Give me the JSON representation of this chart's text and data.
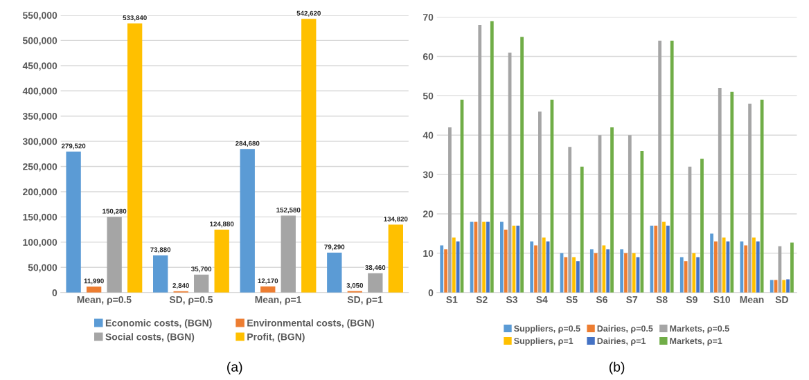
{
  "chart_data": [
    {
      "type": "bar",
      "categories": [
        "Mean, ρ=0.5",
        "SD, ρ=0.5",
        "Mean, ρ=1",
        "SD, ρ=1"
      ],
      "series": [
        {
          "name": "Economic costs, (BGN)",
          "color": "#5b9bd5",
          "values": [
            279520,
            73880,
            284680,
            79290
          ],
          "value_labels": [
            "279,520",
            "73,880",
            "284,680",
            "79,290"
          ]
        },
        {
          "name": "Environmental costs, (BGN)",
          "color": "#ed7d31",
          "values": [
            11990,
            2840,
            12170,
            3050
          ],
          "value_labels": [
            "11,990",
            "2,840",
            "12,170",
            "3,050"
          ]
        },
        {
          "name": "Social costs, (BGN)",
          "color": "#a5a5a5",
          "values": [
            150280,
            35700,
            152580,
            38460
          ],
          "value_labels": [
            "150,280",
            "35,700",
            "152,580",
            "38,460"
          ]
        },
        {
          "name": "Profit, (BGN)",
          "color": "#ffc000",
          "values": [
            533840,
            124880,
            542620,
            134820
          ],
          "value_labels": [
            "533,840",
            "124,880",
            "542,620",
            "134,820"
          ]
        }
      ],
      "ylim": [
        0,
        550000
      ],
      "yticks": [
        0,
        {
          "value": 50000,
          "label": "50,000"
        },
        {
          "value": 100000,
          "label": "100,000"
        },
        {
          "value": 150000,
          "label": "150,000"
        },
        {
          "value": 200000,
          "label": "200,000"
        },
        {
          "value": 250000,
          "label": "250,000"
        },
        {
          "value": 300000,
          "label": "300,000"
        },
        {
          "value": 350000,
          "label": "350,000"
        },
        {
          "value": 400000,
          "label": "400,000"
        },
        {
          "value": 450000,
          "label": "450,000"
        },
        {
          "value": 500000,
          "label": "500,000"
        },
        {
          "value": 550000,
          "label": "550,000"
        }
      ],
      "grid": "y",
      "legend": "bottom",
      "annotations": [
        "(a)"
      ]
    },
    {
      "type": "bar",
      "categories": [
        "S1",
        "S2",
        "S3",
        "S4",
        "S5",
        "S6",
        "S7",
        "S8",
        "S9",
        "S10",
        "Mean",
        "SD"
      ],
      "series": [
        {
          "name": "Suppliers, ρ=0.5",
          "color": "#5b9bd5",
          "values": [
            12,
            18,
            18,
            13,
            10,
            11,
            11,
            17,
            9,
            15,
            13,
            3.2
          ]
        },
        {
          "name": "Dairies, ρ=0.5",
          "color": "#ed7d31",
          "values": [
            11,
            18,
            16,
            12,
            9,
            10,
            10,
            17,
            8,
            13,
            12,
            3.2
          ]
        },
        {
          "name": "Markets, ρ=0.5",
          "color": "#a5a5a5",
          "values": [
            42,
            68,
            61,
            46,
            37,
            40,
            40,
            64,
            32,
            52,
            48,
            11.8
          ]
        },
        {
          "name": "Suppliers, ρ=1",
          "color": "#ffc000",
          "values": [
            14,
            18,
            17,
            14,
            9,
            12,
            10,
            18,
            10,
            14,
            14,
            3.2
          ]
        },
        {
          "name": "Dairies, ρ=1",
          "color": "#4472c4",
          "values": [
            13,
            18,
            17,
            13,
            8,
            11,
            9,
            17,
            9,
            13,
            13,
            3.4
          ]
        },
        {
          "name": "Markets, ρ=1",
          "color": "#70ad47",
          "values": [
            49,
            69,
            65,
            49,
            32,
            42,
            36,
            64,
            34,
            51,
            49,
            12.7
          ]
        }
      ],
      "ylim": [
        0,
        70
      ],
      "yticks": [
        0,
        10,
        20,
        30,
        40,
        50,
        60,
        70
      ],
      "grid": "y",
      "legend": "bottom",
      "annotations": [
        "(b)"
      ]
    }
  ]
}
